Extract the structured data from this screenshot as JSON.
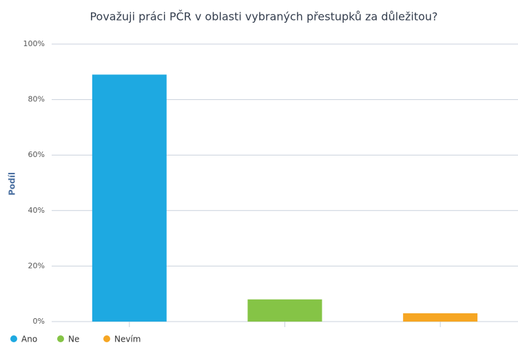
{
  "chart_data": {
    "type": "bar",
    "title": "Považuji práci PČR v oblasti vybraných přestupků za důležitou?",
    "y_label": "Podíl",
    "categories": [
      null
    ],
    "series": [
      {
        "name": "Ano",
        "color": "#1ea9e1",
        "values": [
          89
        ]
      },
      {
        "name": "Ne",
        "color": "#85c446",
        "values": [
          8
        ]
      },
      {
        "name": "Nevím",
        "color": "#f6a623",
        "values": [
          3
        ]
      }
    ],
    "ylim": [
      0,
      100
    ],
    "yticks": [
      {
        "value": 0,
        "label": "0%"
      },
      {
        "value": 20,
        "label": "20%"
      },
      {
        "value": 40,
        "label": "40%"
      },
      {
        "value": 60,
        "label": "60%"
      },
      {
        "value": 80,
        "label": "80%"
      },
      {
        "value": 100,
        "label": "100%"
      }
    ],
    "grid": true,
    "legend": "bottom-left"
  }
}
